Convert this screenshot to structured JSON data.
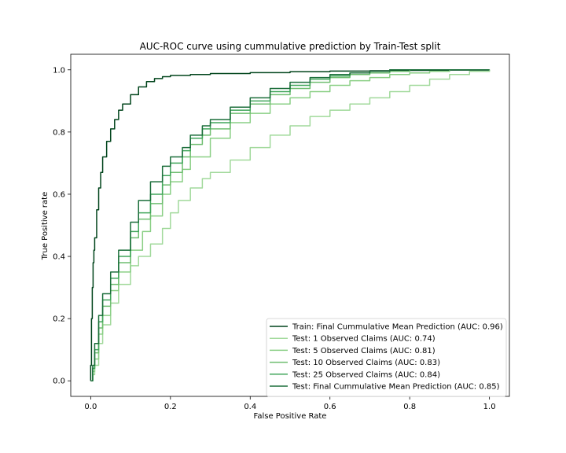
{
  "chart_data": {
    "type": "line",
    "title": "AUC-ROC curve using cummulative prediction by Train-Test split",
    "xlabel": "False Positive Rate",
    "ylabel": "True Positive rate",
    "xlim": [
      -0.05,
      1.05
    ],
    "ylim": [
      -0.05,
      1.05
    ],
    "xticks": [
      "0.0",
      "0.2",
      "0.4",
      "0.6",
      "0.8",
      "1.0"
    ],
    "yticks": [
      "0.0",
      "0.2",
      "0.4",
      "0.6",
      "0.8",
      "1.0"
    ],
    "legend_position": "lower-right",
    "grid": false,
    "series": [
      {
        "name": "Train: Final Cummulative Mean Prediction (AUC: 0.96)",
        "color": "#00441b",
        "x": [
          0,
          0.0,
          0.002,
          0.004,
          0.006,
          0.008,
          0.01,
          0.015,
          0.02,
          0.025,
          0.03,
          0.04,
          0.05,
          0.06,
          0.07,
          0.08,
          0.1,
          0.12,
          0.14,
          0.16,
          0.18,
          0.2,
          0.25,
          0.3,
          0.4,
          0.5,
          0.6,
          0.7,
          0.8,
          0.9,
          1.0
        ],
        "y": [
          0,
          0.05,
          0.2,
          0.3,
          0.38,
          0.42,
          0.46,
          0.55,
          0.62,
          0.67,
          0.72,
          0.77,
          0.81,
          0.84,
          0.87,
          0.89,
          0.92,
          0.945,
          0.962,
          0.972,
          0.978,
          0.982,
          0.985,
          0.988,
          0.991,
          0.994,
          0.996,
          0.997,
          0.998,
          0.999,
          1.0
        ]
      },
      {
        "name": "Test: 1 Observed Claims (AUC: 0.74)",
        "color": "#a1d99b",
        "x": [
          0,
          0.005,
          0.01,
          0.02,
          0.03,
          0.05,
          0.07,
          0.1,
          0.12,
          0.15,
          0.18,
          0.2,
          0.22,
          0.25,
          0.28,
          0.3,
          0.35,
          0.4,
          0.45,
          0.5,
          0.55,
          0.6,
          0.65,
          0.7,
          0.75,
          0.8,
          0.85,
          0.9,
          0.95,
          1.0
        ],
        "y": [
          0,
          0.02,
          0.05,
          0.12,
          0.18,
          0.25,
          0.31,
          0.37,
          0.4,
          0.44,
          0.49,
          0.54,
          0.58,
          0.62,
          0.65,
          0.67,
          0.71,
          0.75,
          0.79,
          0.82,
          0.85,
          0.87,
          0.89,
          0.91,
          0.93,
          0.95,
          0.97,
          0.985,
          0.995,
          1.0
        ]
      },
      {
        "name": "Test: 5 Observed Claims (AUC: 0.81)",
        "color": "#8acf85",
        "x": [
          0,
          0.005,
          0.01,
          0.02,
          0.03,
          0.05,
          0.07,
          0.1,
          0.13,
          0.15,
          0.18,
          0.2,
          0.23,
          0.25,
          0.3,
          0.35,
          0.4,
          0.45,
          0.5,
          0.55,
          0.6,
          0.65,
          0.7,
          0.75,
          0.8,
          0.85,
          0.9,
          1.0
        ],
        "y": [
          0,
          0.03,
          0.07,
          0.15,
          0.21,
          0.29,
          0.35,
          0.42,
          0.48,
          0.53,
          0.6,
          0.64,
          0.68,
          0.72,
          0.78,
          0.83,
          0.86,
          0.89,
          0.91,
          0.93,
          0.95,
          0.965,
          0.975,
          0.985,
          0.99,
          0.995,
          1.0,
          1.0
        ]
      },
      {
        "name": "Test: 10 Observed Claims (AUC: 0.83)",
        "color": "#6fbe70",
        "x": [
          0,
          0.005,
          0.01,
          0.02,
          0.03,
          0.05,
          0.07,
          0.1,
          0.12,
          0.15,
          0.18,
          0.2,
          0.23,
          0.25,
          0.28,
          0.3,
          0.35,
          0.4,
          0.45,
          0.5,
          0.55,
          0.6,
          0.65,
          0.7,
          0.75,
          0.8,
          1.0
        ],
        "y": [
          0,
          0.04,
          0.09,
          0.17,
          0.24,
          0.31,
          0.38,
          0.46,
          0.52,
          0.57,
          0.63,
          0.67,
          0.72,
          0.76,
          0.79,
          0.81,
          0.86,
          0.89,
          0.92,
          0.94,
          0.96,
          0.975,
          0.985,
          0.99,
          0.995,
          1.0,
          1.0
        ]
      },
      {
        "name": "Test: 25 Observed Claims (AUC: 0.84)",
        "color": "#41a65b",
        "x": [
          0,
          0.005,
          0.01,
          0.02,
          0.03,
          0.05,
          0.07,
          0.1,
          0.12,
          0.15,
          0.18,
          0.2,
          0.23,
          0.25,
          0.28,
          0.3,
          0.35,
          0.4,
          0.45,
          0.5,
          0.55,
          0.6,
          0.65,
          0.7,
          0.75,
          0.8,
          1.0
        ],
        "y": [
          0,
          0.04,
          0.1,
          0.19,
          0.26,
          0.33,
          0.4,
          0.48,
          0.54,
          0.6,
          0.66,
          0.7,
          0.74,
          0.78,
          0.81,
          0.83,
          0.87,
          0.9,
          0.93,
          0.95,
          0.97,
          0.98,
          0.99,
          0.995,
          1.0,
          1.0,
          1.0
        ]
      },
      {
        "name": "Test: Final Cummulative Mean Prediction (AUC: 0.85)",
        "color": "#1b6e3a",
        "x": [
          0,
          0.005,
          0.01,
          0.02,
          0.03,
          0.05,
          0.07,
          0.1,
          0.12,
          0.15,
          0.18,
          0.2,
          0.23,
          0.25,
          0.28,
          0.3,
          0.35,
          0.4,
          0.45,
          0.5,
          0.55,
          0.6,
          0.65,
          0.7,
          0.75,
          0.8,
          1.0
        ],
        "y": [
          0,
          0.05,
          0.12,
          0.21,
          0.28,
          0.35,
          0.42,
          0.51,
          0.58,
          0.64,
          0.69,
          0.72,
          0.75,
          0.79,
          0.82,
          0.84,
          0.88,
          0.91,
          0.94,
          0.96,
          0.975,
          0.985,
          0.99,
          0.995,
          1.0,
          1.0,
          1.0
        ]
      }
    ]
  }
}
